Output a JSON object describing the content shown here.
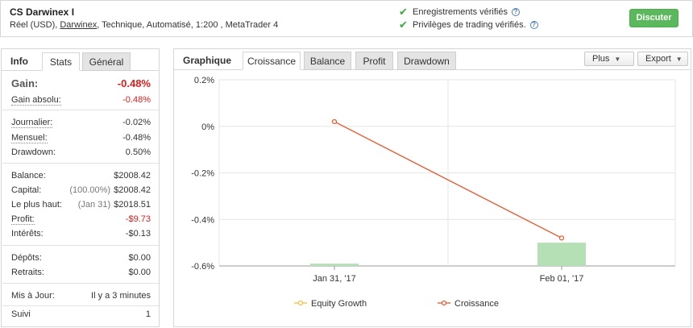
{
  "header": {
    "title": "CS Darwinex I",
    "sub_prefix": "Réel (USD), ",
    "broker": "Darwinex",
    "sub_suffix": ", Technique, Automatisé, 1:200 , MetaTrader 4",
    "verified_records": "Enregistrements vérifiés",
    "verified_privileges": "Privilèges de trading vérifiés.",
    "discuss_button": "Discuter"
  },
  "left_tabs": {
    "info": "Info",
    "stats": "Stats",
    "general": "Général"
  },
  "stats": {
    "gain": {
      "label": "Gain:",
      "value": "-0.48%"
    },
    "gain_absolu": {
      "label": "Gain absolu:",
      "value": "-0.48%"
    },
    "journalier": {
      "label": "Journalier:",
      "value": "-0.02%"
    },
    "mensuel": {
      "label": "Mensuel:",
      "value": "-0.48%"
    },
    "drawdown": {
      "label": "Drawdown:",
      "value": "0.50%"
    },
    "balance": {
      "label": "Balance:",
      "value": "$2008.42"
    },
    "capital": {
      "label": "Capital:",
      "sub": "(100.00%)",
      "value": "$2008.42"
    },
    "plus_haut": {
      "label": "Le plus haut:",
      "sub": "(Jan 31)",
      "value": "$2018.51"
    },
    "profit": {
      "label": "Profit:",
      "value": "-$9.73"
    },
    "interets": {
      "label": "Intérêts:",
      "value": "-$0.13"
    },
    "depots": {
      "label": "Dépôts:",
      "value": "$0.00"
    },
    "retraits": {
      "label": "Retraits:",
      "value": "$0.00"
    },
    "mis_a_jour": {
      "label": "Mis à Jour:",
      "value": "Il y a 3 minutes"
    },
    "suivi": {
      "label": "Suivi",
      "value": "1"
    }
  },
  "right_tabs": {
    "graphique": "Graphique",
    "croissance": "Croissance",
    "balance": "Balance",
    "profit": "Profit",
    "drawdown": "Drawdown",
    "plus": "Plus",
    "export": "Export"
  },
  "colors": {
    "red": "#e0201f",
    "green_button": "#5cb85c",
    "bar": "#b5e0b5",
    "line": "#e8552a",
    "equity": "#f0c040"
  },
  "chart_data": {
    "type": "line",
    "categories": [
      "Jan 31, '17",
      "Feb 01, '17"
    ],
    "y_ticks": [
      "0.2%",
      "0%",
      "-0.2%",
      "-0.4%",
      "-0.6%"
    ],
    "ylim": [
      -0.6,
      0.2
    ],
    "series": [
      {
        "name": "Equity Growth",
        "kind": "bar",
        "values": [
          -0.59,
          -0.5
        ]
      },
      {
        "name": "Croissance",
        "kind": "line",
        "values": [
          0.02,
          -0.48
        ]
      }
    ],
    "grid": true,
    "legend": "bottom"
  }
}
